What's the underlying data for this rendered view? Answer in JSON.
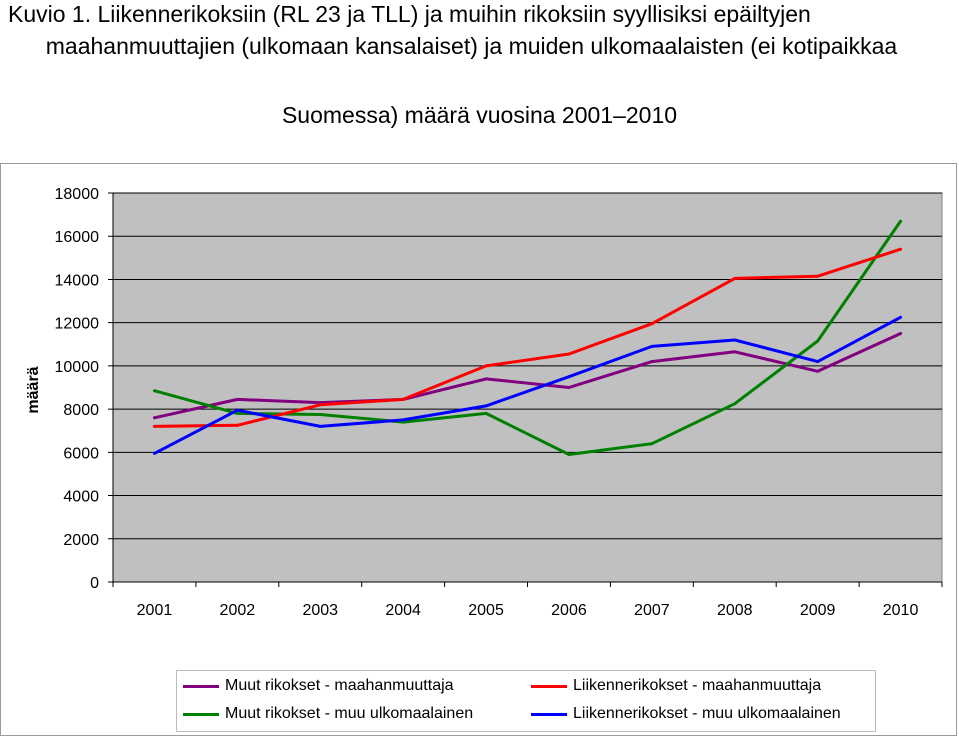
{
  "title_lines": [
    "Kuvio 1. Liikennerikoksiin (RL 23 ja TLL) ja muihin rikoksiin syyllisiksi epäiltyjen",
    "maahanmuuttajien (ulkomaan kansalaiset) ja muiden ulkomaalaisten (ei kotipaikkaa",
    "Suomessa) määrä vuosina 2001–2010"
  ],
  "chart_data": {
    "type": "line",
    "title": "Kuvio 1. Liikennerikoksiin (RL 23 ja TLL) ja muihin rikoksiin syyllisiksi epäiltyjen maahanmuuttajien (ulkomaan kansalaiset) ja muiden ulkomaalaisten (ei kotipaikkaa Suomessa) määrä vuosina 2001–2010",
    "xlabel": "",
    "ylabel": "määrä",
    "categories": [
      "2001",
      "2002",
      "2003",
      "2004",
      "2005",
      "2006",
      "2007",
      "2008",
      "2009",
      "2010"
    ],
    "ylim": [
      0,
      18000
    ],
    "yticks": [
      "0",
      "2000",
      "4000",
      "6000",
      "8000",
      "10000",
      "12000",
      "14000",
      "16000",
      "18000"
    ],
    "grid": true,
    "plot_background": "#c0c0c0",
    "legend_position": "bottom",
    "series": [
      {
        "name": "Muut rikokset - maahanmuuttaja",
        "color": "#800080",
        "values": [
          7600,
          8450,
          8300,
          8450,
          9400,
          9000,
          10200,
          10650,
          9750,
          11500
        ]
      },
      {
        "name": "Muut rikokset - muu ulkomaalainen",
        "color": "#008000",
        "values": [
          8850,
          7800,
          7750,
          7400,
          7800,
          5900,
          6400,
          8250,
          11150,
          16700
        ]
      },
      {
        "name": "Liikennerikokset - maahanmuuttaja",
        "color": "#ff0000",
        "values": [
          7200,
          7250,
          8200,
          8450,
          10000,
          10550,
          11950,
          14050,
          14150,
          15400
        ]
      },
      {
        "name": "Liikennerikokset - muu ulkomaalainen",
        "color": "#0000ff",
        "values": [
          5950,
          7950,
          7200,
          7500,
          8150,
          9500,
          10900,
          11200,
          10200,
          12250
        ]
      }
    ]
  }
}
